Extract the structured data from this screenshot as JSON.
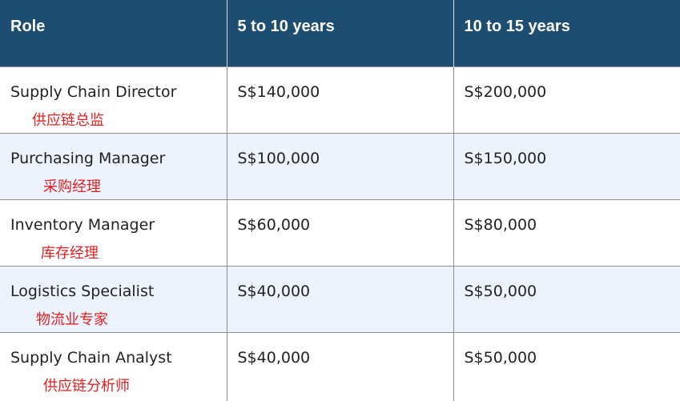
{
  "table": {
    "headers": [
      "Role",
      "5 to 10 years",
      "10 to 15 years"
    ],
    "rows": [
      {
        "role": "Supply Chain Director",
        "role_zh": "供应链总监",
        "y5_10": "S$140,000",
        "y10_15": "S$200,000"
      },
      {
        "role": "Purchasing Manager",
        "role_zh": "采购经理",
        "y5_10": "S$100,000",
        "y10_15": "S$150,000"
      },
      {
        "role": "Inventory Manager",
        "role_zh": "库存经理",
        "y5_10": "S$60,000",
        "y10_15": "S$80,000"
      },
      {
        "role": "Logistics Specialist",
        "role_zh": "物流业专家",
        "y5_10": "S$40,000",
        "y10_15": "S$50,000"
      },
      {
        "role": "Supply Chain Analyst",
        "role_zh": "供应链分析师",
        "y5_10": "S$40,000",
        "y10_15": "S$50,000"
      }
    ]
  },
  "colors": {
    "header_bg": "#1d4e72",
    "header_text": "#ffffff",
    "alt_row_bg": "#edf3fd",
    "translation_text": "#e02020"
  }
}
